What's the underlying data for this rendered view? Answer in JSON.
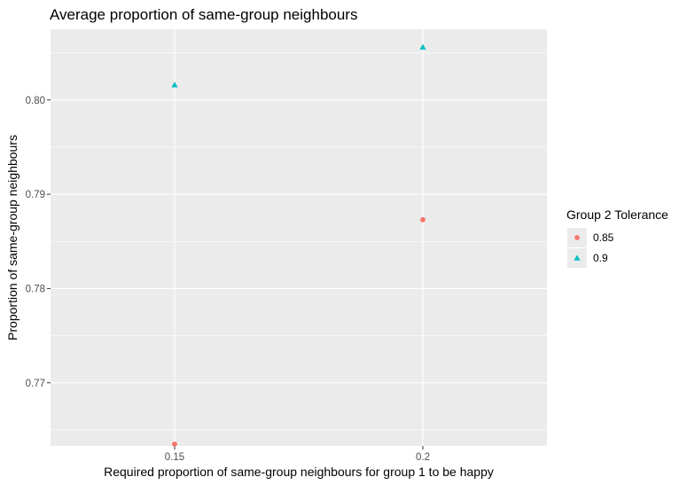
{
  "chart_data": {
    "type": "scatter",
    "title": "Average proportion of same-group neighbours",
    "xlabel": "Required proportion of same-group neighbours for group 1 to be happy",
    "ylabel": "Proportion of same-group neighbours",
    "x_ticks": [
      "0.15",
      "0.2"
    ],
    "y_ticks": [
      "0.77",
      "0.78",
      "0.79",
      "0.80"
    ],
    "xlim": [
      0.125,
      0.225
    ],
    "ylim": [
      0.7633,
      0.8075
    ],
    "grid": true,
    "legend": {
      "title": "Group 2 Tolerance",
      "placement": "right"
    },
    "series": [
      {
        "name": "0.85",
        "shape": "circle",
        "color": "#F8766D",
        "points": [
          {
            "x": 0.15,
            "y": 0.7635
          },
          {
            "x": 0.2,
            "y": 0.7873
          }
        ]
      },
      {
        "name": "0.9",
        "shape": "triangle",
        "color": "#00BFC4",
        "points": [
          {
            "x": 0.15,
            "y": 0.8016
          },
          {
            "x": 0.2,
            "y": 0.8056
          }
        ]
      }
    ]
  }
}
